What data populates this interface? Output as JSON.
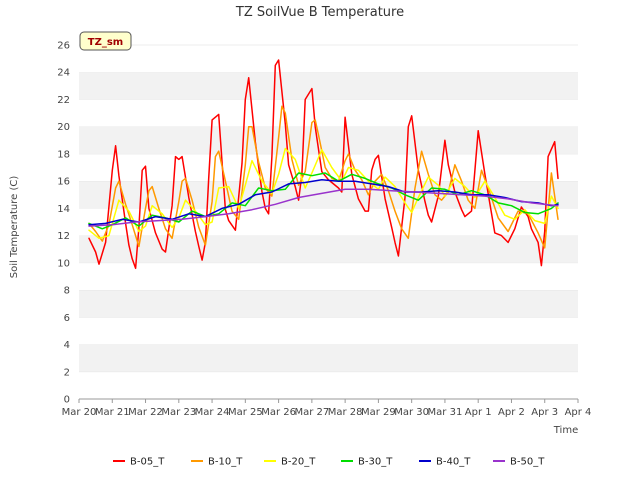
{
  "chart_data": {
    "type": "line",
    "title": "TZ SoilVue B Temperature",
    "xlabel": "Time",
    "ylabel": "Soil Temperature (C)",
    "ylim": [
      0,
      26
    ],
    "xlim": [
      "Mar 20",
      "Apr 4"
    ],
    "yticks": [
      0,
      2,
      4,
      6,
      8,
      10,
      12,
      14,
      16,
      18,
      20,
      22,
      24,
      26
    ],
    "xticks": [
      "Mar 20",
      "Mar 21",
      "Mar 22",
      "Mar 23",
      "Mar 24",
      "Mar 25",
      "Mar 26",
      "Mar 27",
      "Mar 28",
      "Mar 29",
      "Mar 30",
      "Mar 31",
      "Apr 1",
      "Apr 2",
      "Apr 3",
      "Apr 4"
    ],
    "x_unit": "days since Mar 20 00:00",
    "grid": "horizontal alternating bands",
    "legend_position": "bottom",
    "station_badge": "TZ_sm",
    "series": [
      {
        "name": "B-05_T",
        "color": "#ff0000",
        "x": [
          0.3,
          0.5,
          0.6,
          0.8,
          1.0,
          1.1,
          1.2,
          1.4,
          1.5,
          1.6,
          1.7,
          1.8,
          1.9,
          2.0,
          2.1,
          2.3,
          2.5,
          2.6,
          2.8,
          2.9,
          3.0,
          3.1,
          3.3,
          3.5,
          3.6,
          3.7,
          3.8,
          3.9,
          4.0,
          4.2,
          4.4,
          4.5,
          4.7,
          4.9,
          5.0,
          5.1,
          5.3,
          5.5,
          5.6,
          5.7,
          5.8,
          5.9,
          6.0,
          6.2,
          6.3,
          6.5,
          6.6,
          6.7,
          6.8,
          7.0,
          7.1,
          7.3,
          7.5,
          7.6,
          7.8,
          7.9,
          8.0,
          8.2,
          8.4,
          8.6,
          8.7,
          8.8,
          8.9,
          9.0,
          9.2,
          9.4,
          9.5,
          9.6,
          9.8,
          9.9,
          10.0,
          10.2,
          10.4,
          10.5,
          10.6,
          10.8,
          11.0,
          11.1,
          11.3,
          11.5,
          11.6,
          11.8,
          12.0,
          12.2,
          12.5,
          12.7,
          12.9,
          13.1,
          13.3,
          13.5,
          13.6,
          13.8,
          13.9,
          14.0,
          14.1,
          14.3,
          14.4
        ],
        "values": [
          11.8,
          10.8,
          9.9,
          11.5,
          16.8,
          18.6,
          16.4,
          12.9,
          11.3,
          10.3,
          9.6,
          12.6,
          16.8,
          17.1,
          14.0,
          12.2,
          11.0,
          10.8,
          14.2,
          17.8,
          17.6,
          17.8,
          14.8,
          12.3,
          11.2,
          10.2,
          11.5,
          16.2,
          20.5,
          20.9,
          13.9,
          13.1,
          12.4,
          17.3,
          22.0,
          23.6,
          18.9,
          15.2,
          14.0,
          13.6,
          17.8,
          24.5,
          24.9,
          20.2,
          17.2,
          15.6,
          14.6,
          16.5,
          22.0,
          22.8,
          20.0,
          16.7,
          16.1,
          15.9,
          15.5,
          15.2,
          20.7,
          16.5,
          14.7,
          13.8,
          13.8,
          16.8,
          17.6,
          17.9,
          14.7,
          12.6,
          11.5,
          10.5,
          14.8,
          20.0,
          20.8,
          16.8,
          14.5,
          13.5,
          13.0,
          14.9,
          19.0,
          17.2,
          15.2,
          13.9,
          13.4,
          13.8,
          19.7,
          16.5,
          12.2,
          12.0,
          11.5,
          12.5,
          14.1,
          13.4,
          12.5,
          11.5,
          9.8,
          12.3,
          17.8,
          18.9,
          16.2
        ]
      },
      {
        "name": "B-10_T",
        "color": "#ff9900",
        "x": [
          0.3,
          0.5,
          0.7,
          0.9,
          1.1,
          1.2,
          1.4,
          1.6,
          1.8,
          2.0,
          2.1,
          2.2,
          2.4,
          2.6,
          2.8,
          3.0,
          3.1,
          3.2,
          3.4,
          3.6,
          3.8,
          4.0,
          4.1,
          4.2,
          4.4,
          4.6,
          4.8,
          5.0,
          5.1,
          5.2,
          5.4,
          5.6,
          5.8,
          6.0,
          6.1,
          6.2,
          6.4,
          6.6,
          6.8,
          7.0,
          7.1,
          7.2,
          7.4,
          7.6,
          7.8,
          8.0,
          8.1,
          8.3,
          8.5,
          8.7,
          8.9,
          9.1,
          9.3,
          9.5,
          9.7,
          9.9,
          10.1,
          10.3,
          10.5,
          10.7,
          10.9,
          11.1,
          11.3,
          11.5,
          11.7,
          11.9,
          12.1,
          12.3,
          12.6,
          12.9,
          13.2,
          13.5,
          13.8,
          14.0,
          14.2,
          14.4
        ],
        "values": [
          12.9,
          12.3,
          11.6,
          12.8,
          15.5,
          16.0,
          14.3,
          12.8,
          11.2,
          14.0,
          15.3,
          15.6,
          14.0,
          12.5,
          11.8,
          14.5,
          16.0,
          16.2,
          14.6,
          12.6,
          11.3,
          14.5,
          17.8,
          18.2,
          16.0,
          13.8,
          13.2,
          17.2,
          20.0,
          20.0,
          17.4,
          15.5,
          14.9,
          19.2,
          21.5,
          21.0,
          17.6,
          15.7,
          16.7,
          20.3,
          20.5,
          19.4,
          17.0,
          16.2,
          16.0,
          17.5,
          18.0,
          16.8,
          16.1,
          15.0,
          16.0,
          16.5,
          15.3,
          13.8,
          12.5,
          11.8,
          15.5,
          18.2,
          16.5,
          15.0,
          14.6,
          15.2,
          17.2,
          16.0,
          14.6,
          14.0,
          16.8,
          15.5,
          13.3,
          12.3,
          13.8,
          13.6,
          12.2,
          11.1,
          16.6,
          13.2
        ]
      },
      {
        "name": "B-20_T",
        "color": "#ffff00",
        "x": [
          0.3,
          0.6,
          0.9,
          1.2,
          1.5,
          1.8,
          2.0,
          2.2,
          2.5,
          2.8,
          3.0,
          3.2,
          3.5,
          3.8,
          4.0,
          4.2,
          4.5,
          4.8,
          5.0,
          5.2,
          5.5,
          5.8,
          6.0,
          6.2,
          6.5,
          6.8,
          7.0,
          7.3,
          7.6,
          7.9,
          8.1,
          8.4,
          8.7,
          9.0,
          9.2,
          9.5,
          9.8,
          10.0,
          10.2,
          10.5,
          10.8,
          11.0,
          11.3,
          11.6,
          11.9,
          12.2,
          12.5,
          12.8,
          13.1,
          13.4,
          13.7,
          14.0,
          14.2,
          14.4
        ],
        "values": [
          12.4,
          11.8,
          12.0,
          14.6,
          13.8,
          12.3,
          12.7,
          14.2,
          13.6,
          12.6,
          13.3,
          14.6,
          13.8,
          12.8,
          13.0,
          15.5,
          15.6,
          14.0,
          15.7,
          17.5,
          16.0,
          15.1,
          16.5,
          18.4,
          17.6,
          15.5,
          16.6,
          18.3,
          17.0,
          16.0,
          17.0,
          16.8,
          16.0,
          15.4,
          16.3,
          15.6,
          14.4,
          13.7,
          14.8,
          16.3,
          15.7,
          14.9,
          16.2,
          15.6,
          14.8,
          16.0,
          14.8,
          13.5,
          13.2,
          13.9,
          13.1,
          12.9,
          14.9,
          14.0
        ]
      },
      {
        "name": "B-30_T",
        "color": "#00dd00",
        "x": [
          0.3,
          0.7,
          1.0,
          1.4,
          1.8,
          2.2,
          2.6,
          3.0,
          3.4,
          3.8,
          4.2,
          4.6,
          5.0,
          5.4,
          5.8,
          6.2,
          6.6,
          7.0,
          7.4,
          7.8,
          8.2,
          8.6,
          9.0,
          9.4,
          9.8,
          10.2,
          10.6,
          11.0,
          11.4,
          11.8,
          12.2,
          12.6,
          13.0,
          13.4,
          13.8,
          14.2,
          14.4
        ],
        "values": [
          12.9,
          12.5,
          12.8,
          13.3,
          12.7,
          13.5,
          13.3,
          13.0,
          13.8,
          13.4,
          13.6,
          14.4,
          14.2,
          15.5,
          15.3,
          15.4,
          16.6,
          16.4,
          16.6,
          16.0,
          16.5,
          16.2,
          15.8,
          15.5,
          15.0,
          14.6,
          15.5,
          15.4,
          15.0,
          15.3,
          15.0,
          14.4,
          14.2,
          13.7,
          13.6,
          14.0,
          14.4
        ]
      },
      {
        "name": "B-40_T",
        "color": "#0000cc",
        "x": [
          0.3,
          0.8,
          1.3,
          1.8,
          2.3,
          2.8,
          3.3,
          3.8,
          4.3,
          4.8,
          5.3,
          5.8,
          6.3,
          6.8,
          7.3,
          7.8,
          8.3,
          8.8,
          9.3,
          9.8,
          10.3,
          10.8,
          11.3,
          11.8,
          12.3,
          12.8,
          13.3,
          13.8,
          14.2,
          14.4
        ],
        "values": [
          12.8,
          12.9,
          13.2,
          13.0,
          13.4,
          13.2,
          13.6,
          13.4,
          14.0,
          14.3,
          15.0,
          15.2,
          15.8,
          15.9,
          16.1,
          16.0,
          16.0,
          15.8,
          15.6,
          15.2,
          15.2,
          15.3,
          15.2,
          15.0,
          15.0,
          14.8,
          14.5,
          14.4,
          14.2,
          14.3
        ]
      },
      {
        "name": "B-50_T",
        "color": "#9933cc",
        "x": [
          0.3,
          1.0,
          1.7,
          2.4,
          3.1,
          3.8,
          4.5,
          5.2,
          5.9,
          6.6,
          7.3,
          8.0,
          8.7,
          9.4,
          10.1,
          10.8,
          11.5,
          12.2,
          12.9,
          13.6,
          14.4
        ],
        "values": [
          12.7,
          12.8,
          13.0,
          13.1,
          13.2,
          13.4,
          13.6,
          13.9,
          14.3,
          14.8,
          15.1,
          15.4,
          15.4,
          15.3,
          15.2,
          15.1,
          15.0,
          14.9,
          14.7,
          14.4,
          14.2
        ]
      }
    ]
  }
}
